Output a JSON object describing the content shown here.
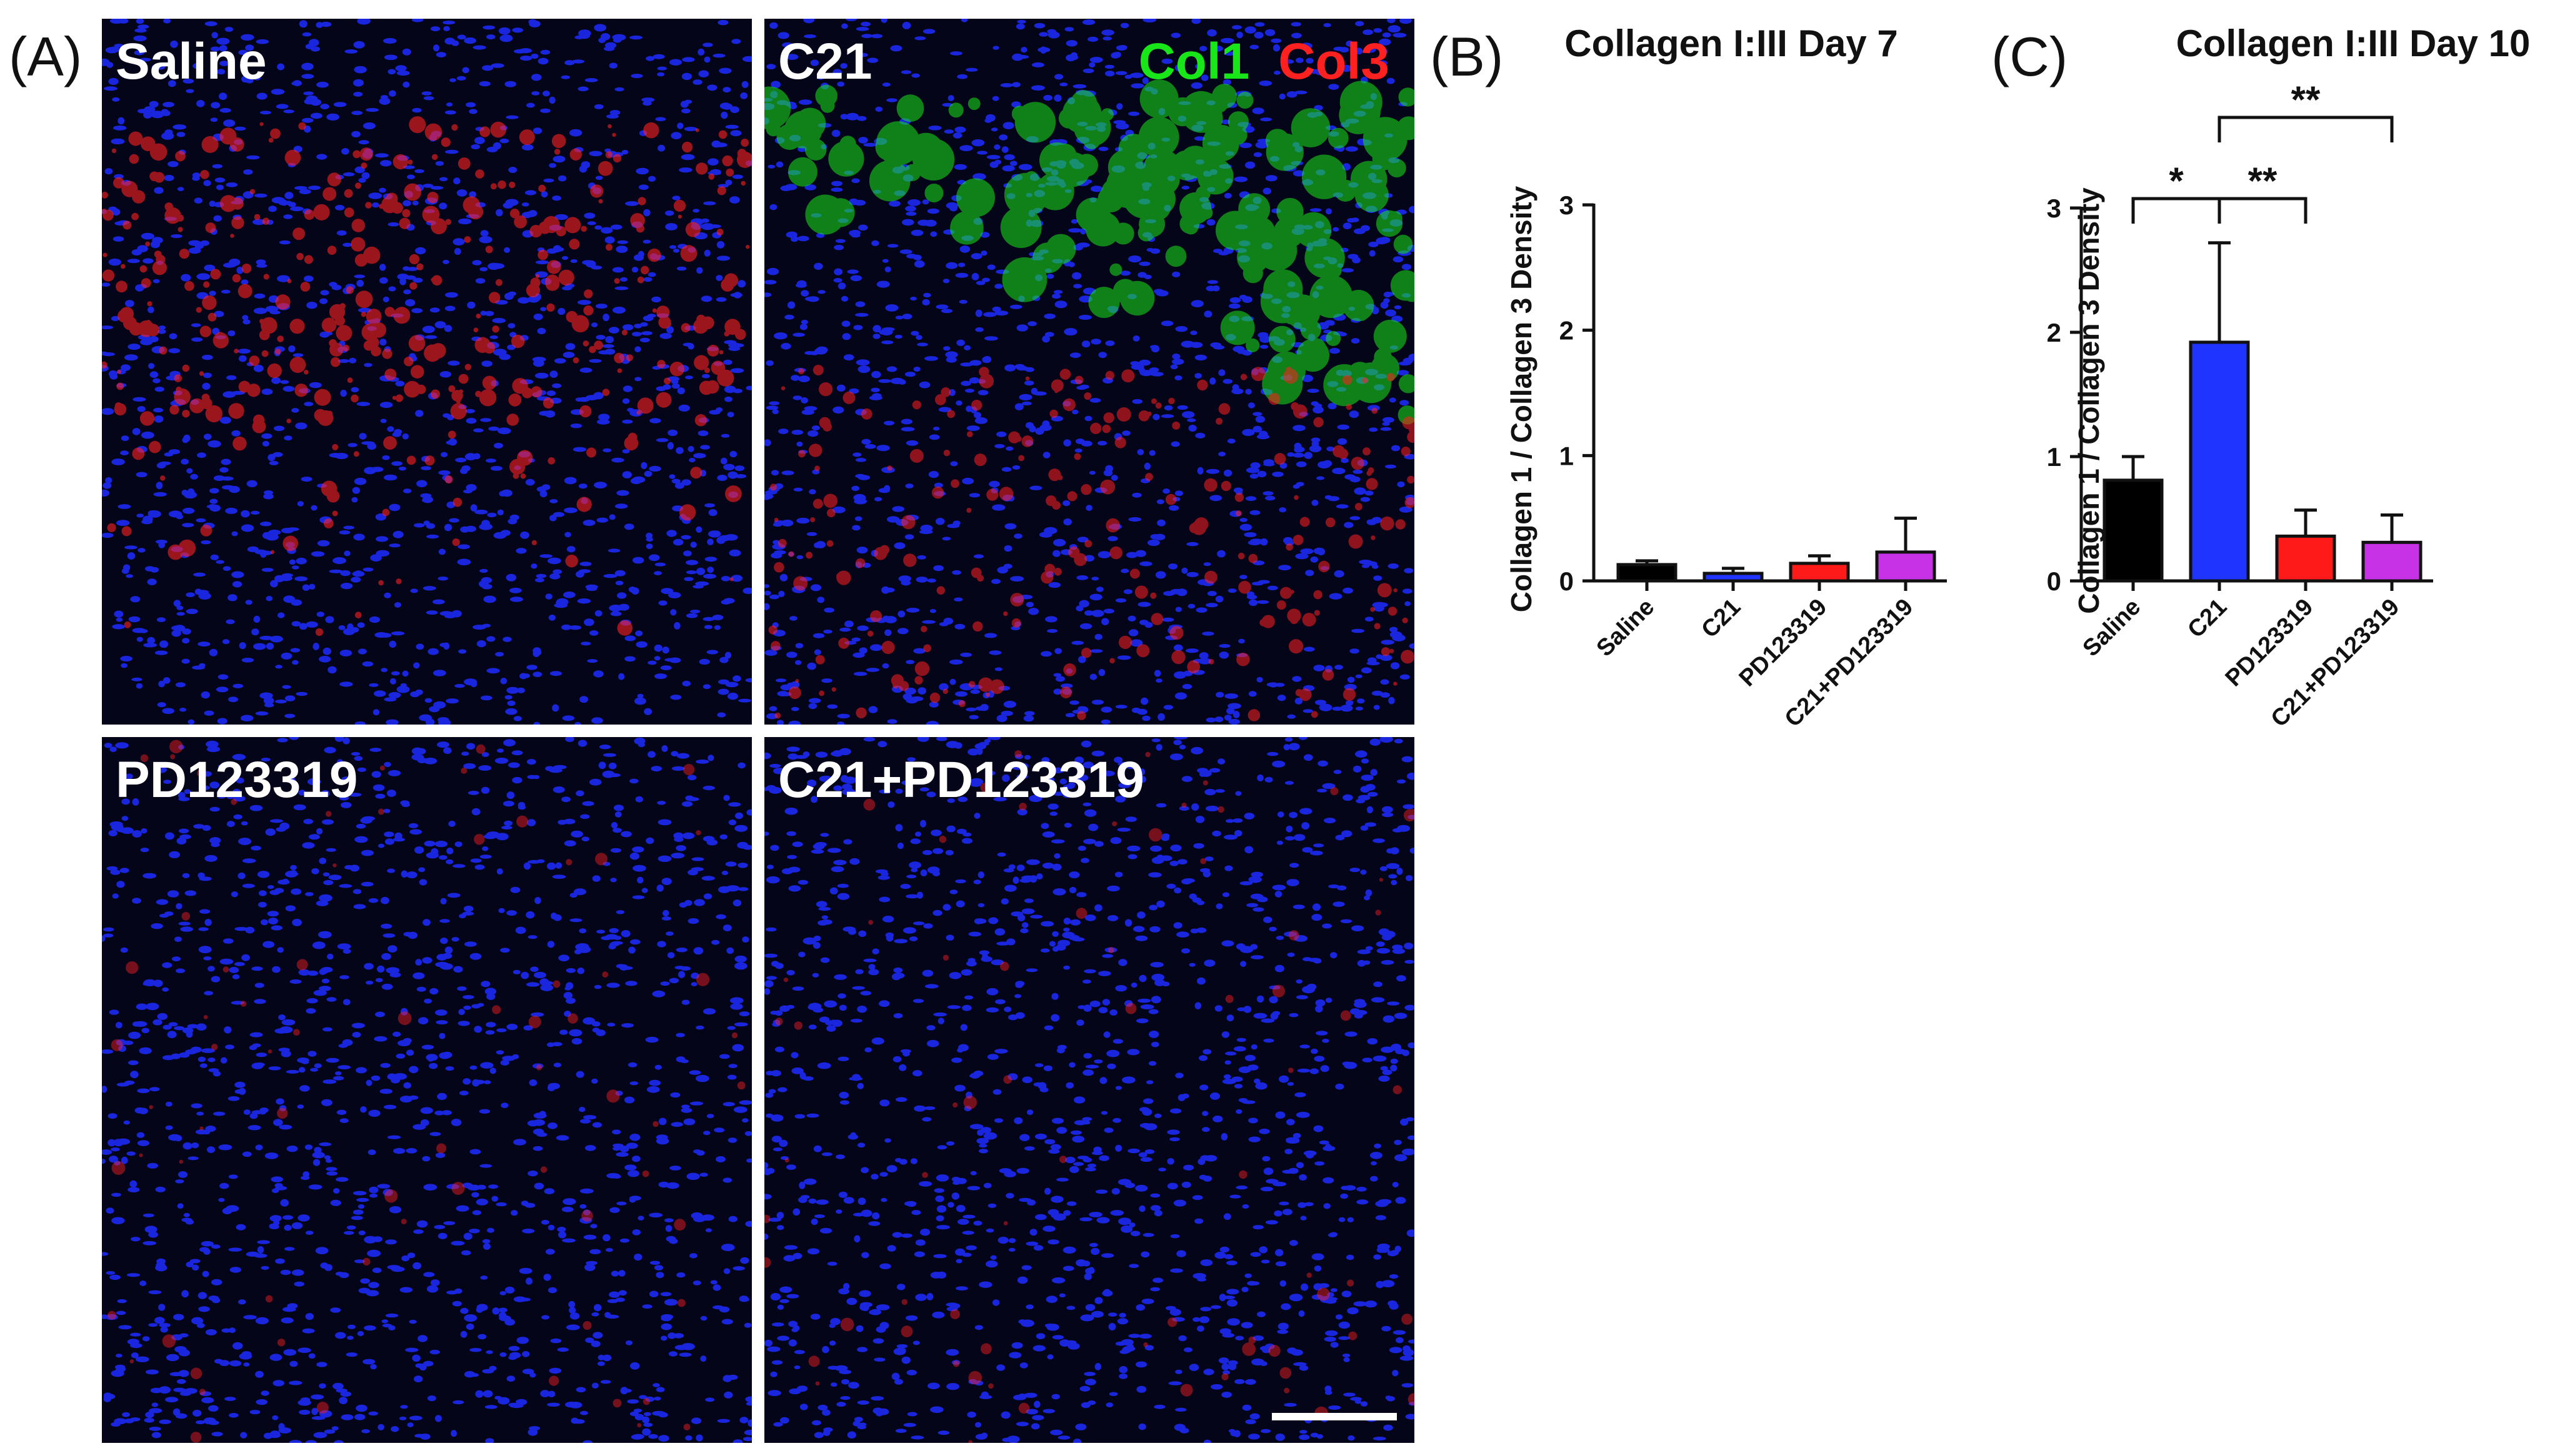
{
  "panel_letters": {
    "a": "(A)",
    "b": "(B)",
    "c": "(C)"
  },
  "micrographs": [
    {
      "label": "Saline",
      "collagen": "red"
    },
    {
      "label": "C21",
      "collagen": "green"
    },
    {
      "label": "PD123319",
      "collagen": "sparse"
    },
    {
      "label": "C21+PD123319",
      "collagen": "sparse"
    }
  ],
  "legend": {
    "col1": "Col1",
    "col3": "Col3",
    "col1_color": "#19e619",
    "col3_color": "#ff2020"
  },
  "colors": {
    "saline": "#000000",
    "c21": "#1f35ff",
    "pd": "#ff1a1a",
    "combo": "#c832e6",
    "nuclei": "#1e2cff"
  },
  "chart_data": [
    {
      "type": "bar",
      "title": "Collagen I:III Day 7",
      "ylabel": "Collagen 1 /  Collagen 3  Density",
      "categories": [
        "Saline",
        "C21",
        "PD123319",
        "C21+PD123319"
      ],
      "values": [
        0.13,
        0.06,
        0.14,
        0.23
      ],
      "errors": [
        0.03,
        0.04,
        0.06,
        0.27
      ],
      "ylim": [
        0,
        3
      ],
      "yticks": [
        "0",
        "1",
        "2",
        "3"
      ],
      "grid": false,
      "significance": []
    },
    {
      "type": "bar",
      "title": "Collagen I:III Day 10",
      "ylabel": "Collagen 1 / Collagen 3 Density",
      "categories": [
        "Saline",
        "C21",
        "PD123319",
        "C21+PD123319"
      ],
      "values": [
        0.81,
        1.92,
        0.36,
        0.31
      ],
      "errors": [
        0.19,
        0.8,
        0.21,
        0.22
      ],
      "ylim": [
        0,
        3
      ],
      "yticks": [
        "0",
        "1",
        "2",
        "3"
      ],
      "grid": false,
      "significance": [
        {
          "from": 0,
          "to": 1,
          "label": "*"
        },
        {
          "from": 1,
          "to": 2,
          "label": "**"
        },
        {
          "from": 1,
          "to": 3,
          "label": "**"
        }
      ]
    }
  ]
}
